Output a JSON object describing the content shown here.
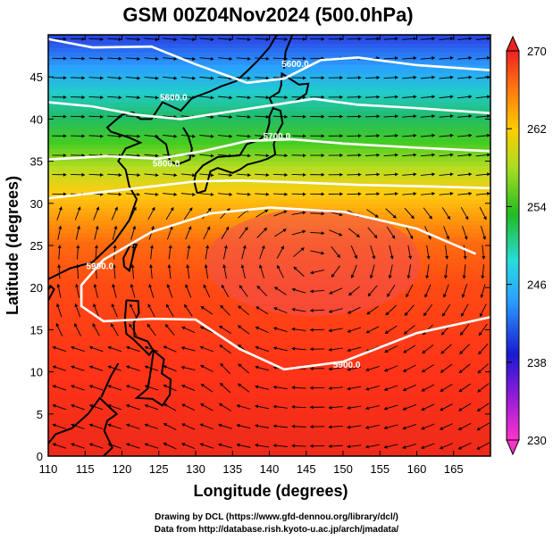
{
  "title": "GSM 00Z04Nov2024 (500.0hPa)",
  "x_axis_label": "Longitude (degrees)",
  "y_axis_label": "Latitude  (degrees)",
  "x_ticks": [
    "110",
    "115",
    "120",
    "125",
    "130",
    "135",
    "140",
    "145",
    "150",
    "155",
    "160",
    "165"
  ],
  "y_ticks": [
    "0",
    "5",
    "10",
    "15",
    "20",
    "25",
    "30",
    "35",
    "40",
    "45"
  ],
  "colorbar_ticks": [
    "230",
    "238",
    "246",
    "254",
    "262",
    "270"
  ],
  "contour_labels": [
    "5500.0",
    "5600.0",
    "5700.0",
    "5800.0",
    "5900.0"
  ],
  "credits": [
    "Drawing by DCL (https://www.gfd-dennou.org/library/dcl/)",
    "Data from http://database.rish.kyoto-u.ac.jp/arch/jmadata/"
  ],
  "chart_data": {
    "type": "heatmap",
    "title": "GSM 00Z04Nov2024 (500.0hPa)",
    "xlabel": "Longitude (degrees)",
    "ylabel": "Latitude  (degrees)",
    "xlim": [
      110,
      170
    ],
    "ylim": [
      0,
      50
    ],
    "color_scale": {
      "min": 230,
      "max": 270,
      "ticks": [
        230,
        238,
        246,
        254,
        262,
        270
      ]
    },
    "shaded_field_colors": {
      "low": "#ff33cc",
      "mid": "#22bb22",
      "high": "#ee2222"
    },
    "geopotential_height_contours": [
      5500,
      5600,
      5700,
      5800,
      5900
    ],
    "overlay": "wind streamlines with arrows",
    "grid": true,
    "colors": {
      "contour": "#ffffff",
      "coastline": "#000000"
    }
  }
}
